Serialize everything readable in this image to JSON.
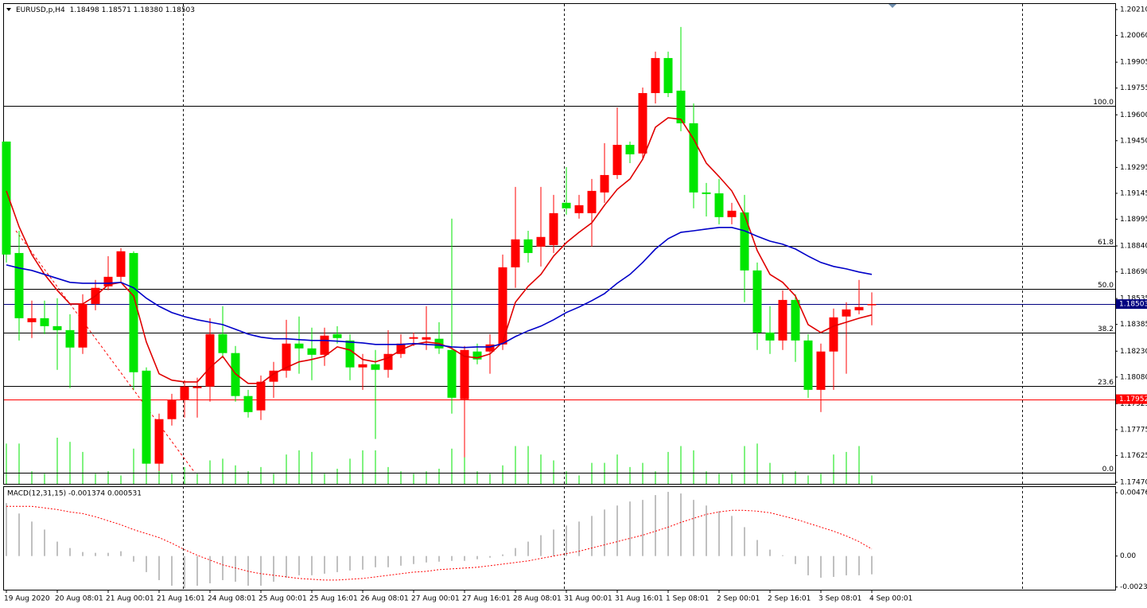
{
  "chart_data": [
    {
      "type": "candlestick",
      "title": "EURUSD,p,H4",
      "subtitle": "1.18498 1.18571 1.18380 1.18503",
      "categories": [
        "19 Aug 2020",
        null,
        null,
        null,
        "20 Aug 08:01",
        null,
        null,
        null,
        "21 Aug 00:01",
        null,
        null,
        null,
        "21 Aug 16:01",
        null,
        null,
        null,
        "24 Aug 08:01",
        null,
        null,
        null,
        "25 Aug 00:01",
        null,
        null,
        null,
        "25 Aug 16:01",
        null,
        null,
        null,
        "26 Aug 08:01",
        null,
        null,
        null,
        "27 Aug 00:01",
        null,
        null,
        null,
        "27 Aug 16:01",
        null,
        null,
        null,
        "28 Aug 08:01",
        null,
        null,
        null,
        "31 Aug 00:01",
        null,
        null,
        null,
        "31 Aug 16:01",
        null,
        null,
        null,
        "1 Sep 08:01",
        null,
        null,
        null,
        "2 Sep 00:01",
        null,
        null,
        null,
        "2 Sep 16:01",
        null,
        null,
        null,
        "3 Sep 08:01",
        null,
        null,
        null,
        "4 Sep 00:01"
      ],
      "open": [
        1.19445,
        1.18799,
        1.18398,
        1.18421,
        1.18375,
        1.18352,
        1.18251,
        1.18504,
        1.18606,
        1.18661,
        1.18799,
        1.18117,
        1.17578,
        1.17836,
        1.17947,
        1.18016,
        1.18025,
        1.18329,
        1.18219,
        1.1797,
        1.17887,
        1.18053,
        1.18117,
        1.18274,
        1.18246,
        1.18209,
        1.18329,
        1.18292,
        1.18136,
        1.18154,
        1.18122,
        1.18214,
        1.18302,
        1.18297,
        1.18302,
        1.18237,
        1.17951,
        1.18228,
        1.18228,
        1.18269,
        1.18716,
        1.18878,
        1.18836,
        1.18845,
        1.1909,
        1.1903,
        1.1903,
        1.1915,
        1.19251,
        1.19426,
        1.19376,
        1.19726,
        1.19929,
        1.1974,
        1.19551,
        1.1915,
        1.19145,
        1.19007,
        1.19034,
        1.18698,
        1.18338,
        1.18292,
        1.18527,
        1.18292,
        1.18006,
        1.18228,
        1.18431,
        1.18467,
        1.18498
      ],
      "high": [
        1.19445,
        1.18928,
        1.18523,
        1.18523,
        1.18537,
        1.18444,
        1.1856,
        1.18643,
        1.18781,
        1.18827,
        1.18809,
        1.18136,
        1.17868,
        1.17983,
        1.18062,
        1.18076,
        1.18421,
        1.18491,
        1.1826,
        1.18006,
        1.18089,
        1.18168,
        1.18412,
        1.18431,
        1.18366,
        1.18366,
        1.18375,
        1.18329,
        1.18214,
        1.18237,
        1.18352,
        1.18329,
        1.18338,
        1.18491,
        1.18398,
        1.18998,
        1.1826,
        1.18274,
        1.18329,
        1.1879,
        1.19182,
        1.18928,
        1.19182,
        1.19136,
        1.19297,
        1.19136,
        1.19228,
        1.19436,
        1.19643,
        1.19445,
        1.19758,
        1.19966,
        1.19966,
        1.20109,
        1.19666,
        1.19205,
        1.19228,
        1.1909,
        1.19136,
        1.18744,
        1.18491,
        1.18583,
        1.1856,
        1.18329,
        1.18274,
        1.18477,
        1.18514,
        1.18643,
        1.18571
      ],
      "low": [
        1.18744,
        1.18292,
        1.18306,
        1.18329,
        1.18122,
        1.18016,
        1.18214,
        1.18467,
        1.18583,
        1.18629,
        1.18006,
        1.17545,
        1.17536,
        1.17799,
        1.17845,
        1.17845,
        1.17937,
        1.18191,
        1.17937,
        1.17845,
        1.17831,
        1.1796,
        1.18076,
        1.18099,
        1.18062,
        1.18145,
        1.18274,
        1.18062,
        1.18006,
        1.17721,
        1.18076,
        1.18191,
        1.1826,
        1.18237,
        1.18214,
        1.17868,
        1.17615,
        1.18154,
        1.18099,
        1.18237,
        1.18597,
        1.18744,
        1.18721,
        1.18799,
        1.19021,
        1.18998,
        1.18836,
        1.1909,
        1.19228,
        1.1932,
        1.19343,
        1.19666,
        1.19703,
        1.19505,
        1.19058,
        1.19011,
        1.18965,
        1.18965,
        1.18514,
        1.18237,
        1.18214,
        1.18237,
        1.18168,
        1.1796,
        1.17877,
        1.18006,
        1.18099,
        1.18444,
        1.1838
      ],
      "close": [
        1.1879,
        1.18421,
        1.18421,
        1.18375,
        1.18352,
        1.18251,
        1.18504,
        1.18597,
        1.18661,
        1.18809,
        1.18108,
        1.17578,
        1.17836,
        1.17947,
        1.18025,
        1.18025,
        1.18329,
        1.18219,
        1.1797,
        1.17877,
        1.18053,
        1.18117,
        1.18274,
        1.18246,
        1.18209,
        1.1832,
        1.18306,
        1.18136,
        1.18154,
        1.18122,
        1.18214,
        1.18274,
        1.18311,
        1.18311,
        1.18246,
        1.1796,
        1.18237,
        1.18182,
        1.18269,
        1.18716,
        1.18878,
        1.18799,
        1.18892,
        1.1903,
        1.19058,
        1.19076,
        1.19159,
        1.19251,
        1.19426,
        1.19371,
        1.19726,
        1.19929,
        1.19726,
        1.19551,
        1.1915,
        1.19141,
        1.19007,
        1.19044,
        1.18698,
        1.18338,
        1.18292,
        1.18527,
        1.18292,
        1.18006,
        1.18228,
        1.18426,
        1.18472,
        1.18486,
        1.18503
      ],
      "up_color": "#ff0000",
      "down_color": "#00e600",
      "series": [
        {
          "color": "#e00000",
          "values": [
            1.19159,
            1.18951,
            1.1879,
            1.18675,
            1.18583,
            1.18504,
            1.18504,
            1.1855,
            1.18615,
            1.18629,
            1.1855,
            1.18283,
            1.18099,
            1.18062,
            1.18052,
            1.18052,
            1.18135,
            1.182,
            1.18099,
            1.18043,
            1.18043,
            1.18099,
            1.18135,
            1.18168,
            1.18182,
            1.182,
            1.18255,
            1.18237,
            1.18182,
            1.18168,
            1.18191,
            1.18237,
            1.18269,
            1.18283,
            1.18274,
            1.18246,
            1.182,
            1.18191,
            1.18214,
            1.18283,
            1.18514,
            1.18606,
            1.18675,
            1.18781,
            1.18859,
            1.18919,
            1.18974,
            1.19076,
            1.19168,
            1.19228,
            1.19343,
            1.19528,
            1.19583,
            1.19574,
            1.19459,
            1.1932,
            1.19242,
            1.19159,
            1.19021,
            1.18813,
            1.18675,
            1.18629,
            1.1855,
            1.18384,
            1.18338,
            1.18375,
            1.18398,
            1.18421,
            1.1844
          ]
        },
        {
          "color": "#0000c8",
          "values": [
            1.1873,
            1.18712,
            1.18698,
            1.18675,
            1.18652,
            1.18629,
            1.18624,
            1.18624,
            1.18624,
            1.18629,
            1.18597,
            1.18537,
            1.1849,
            1.18454,
            1.1843,
            1.18412,
            1.18398,
            1.18384,
            1.18357,
            1.18329,
            1.18311,
            1.18302,
            1.18302,
            1.18297,
            1.18292,
            1.18292,
            1.18288,
            1.18283,
            1.18278,
            1.18269,
            1.18269,
            1.18269,
            1.18274,
            1.18269,
            1.18265,
            1.18255,
            1.18251,
            1.18255,
            1.18255,
            1.18274,
            1.18315,
            1.18348,
            1.18375,
            1.18412,
            1.18454,
            1.18486,
            1.18523,
            1.18564,
            1.18624,
            1.18675,
            1.18744,
            1.18822,
            1.18882,
            1.18919,
            1.18928,
            1.18938,
            1.18947,
            1.18947,
            1.18928,
            1.18896,
            1.18868,
            1.1885,
            1.18822,
            1.18781,
            1.18744,
            1.18721,
            1.18707,
            1.18689,
            1.18675
          ]
        }
      ],
      "volumes": [
        48,
        48,
        15,
        12,
        55,
        50,
        38,
        12,
        15,
        10,
        42,
        25,
        20,
        12,
        20,
        12,
        28,
        30,
        22,
        15,
        20,
        12,
        35,
        40,
        38,
        12,
        18,
        30,
        40,
        40,
        20,
        15,
        12,
        15,
        18,
        42,
        35,
        15,
        12,
        22,
        45,
        45,
        35,
        28,
        15,
        10,
        25,
        25,
        35,
        20,
        25,
        15,
        38,
        45,
        40,
        15,
        12,
        12,
        45,
        48,
        25,
        12,
        15,
        10,
        12,
        35,
        38,
        45,
        10
      ],
      "volume_color": "#00e600",
      "fib_levels": [
        {
          "value": 1.19652,
          "label": "100.0"
        },
        {
          "value": 1.1884,
          "label": "61.8"
        },
        {
          "value": 1.1859,
          "label": "50.0"
        },
        {
          "value": 1.18339,
          "label": "38.2"
        },
        {
          "value": 1.18029,
          "label": "23.6"
        },
        {
          "value": 1.17527,
          "label": "0.0"
        }
      ],
      "price_lines": [
        {
          "value": 1.18503,
          "color": "#000080"
        },
        {
          "value": 1.17952,
          "color": "#ff0000"
        }
      ],
      "ylim": [
        1.17461,
        1.20247
      ],
      "yticks": [
        {
          "value": 1.2021,
          "label": "1.20210"
        },
        {
          "value": 1.2006,
          "label": "1.20060"
        },
        1.19905,
        1.19755,
        {
          "value": 1.196,
          "label": "1.19600"
        },
        {
          "value": 1.1945,
          "label": "1.19450"
        },
        1.19295,
        1.19145,
        1.18995,
        {
          "value": 1.1884,
          "label": "1.18840"
        },
        {
          "value": 1.1869,
          "label": "1.18690"
        },
        1.18535,
        1.18385,
        {
          "value": 1.1823,
          "label": "1.18230"
        },
        {
          "value": 1.1808,
          "label": "1.18080"
        },
        1.17925,
        1.17775,
        1.17625,
        {
          "value": 1.1747,
          "label": "1.17470"
        }
      ]
    },
    {
      "type": "macd",
      "title": "MACD(12,31,15) -0.001374 0.000531",
      "histogram": {
        "color": "#c0c0c0",
        "values": [
          0.00398,
          0.003196,
          0.002593,
          0.00199,
          0.001085,
          0.000603,
          0.000302,
          0.000241,
          0.000241,
          0.000362,
          -0.000422,
          -0.001206,
          -0.001809,
          -0.002231,
          -0.002412,
          -0.002231,
          -0.00205,
          -0.001809,
          -0.00193,
          -0.002231,
          -0.002231,
          -0.00193,
          -0.001628,
          -0.001447,
          -0.001447,
          -0.001327,
          -0.001206,
          -0.001085,
          -0.001025,
          -0.000844,
          -0.000844,
          -0.000724,
          -0.000603,
          -0.000482,
          -0.000422,
          -0.000362,
          -0.000362,
          -0.000241,
          -0.000121,
          0.000121,
          0.000603,
          0.001085,
          0.001568,
          0.00199,
          0.002291,
          0.002593,
          0.003015,
          0.003497,
          0.003799,
          0.0041,
          0.004221,
          0.004583,
          0.004824,
          0.004703,
          0.004221,
          0.003799,
          0.003377,
          0.003015,
          0.002171,
          0.001206,
          0.000482,
          6e-05,
          -0.000603,
          -0.001447,
          -0.001628,
          -0.001568,
          -0.001447,
          -0.001447,
          -0.001374
        ]
      },
      "signal": {
        "color": "#ff0000",
        "values": [
          0.003739,
          0.003739,
          0.003739,
          0.003618,
          0.003497,
          0.003317,
          0.003196,
          0.002955,
          0.002653,
          0.002352,
          0.00199,
          0.001688,
          0.001387,
          0.000965,
          0.000482,
          6e-05,
          -0.000302,
          -0.000663,
          -0.000905,
          -0.001146,
          -0.001327,
          -0.001447,
          -0.001568,
          -0.001688,
          -0.001749,
          -0.001809,
          -0.001809,
          -0.001749,
          -0.001688,
          -0.001568,
          -0.001447,
          -0.001327,
          -0.001206,
          -0.001146,
          -0.001025,
          -0.000965,
          -0.000905,
          -0.000844,
          -0.000724,
          -0.000603,
          -0.000482,
          -0.000362,
          -0.000181,
          0,
          0.000181,
          0.000362,
          0.000603,
          0.000844,
          0.001085,
          0.001327,
          0.001568,
          0.001869,
          0.002171,
          0.002533,
          0.002834,
          0.003136,
          0.003317,
          0.003437,
          0.003437,
          0.003377,
          0.003256,
          0.003015,
          0.002774,
          0.002472,
          0.002171,
          0.001869,
          0.001508,
          0.001085,
          0.000531
        ]
      },
      "ylim": [
        -0.00253,
        0.005188
      ],
      "yticks": [
        0.004766,
        {
          "value": 0,
          "label": "0.00"
        },
        -0.00233
      ]
    }
  ]
}
